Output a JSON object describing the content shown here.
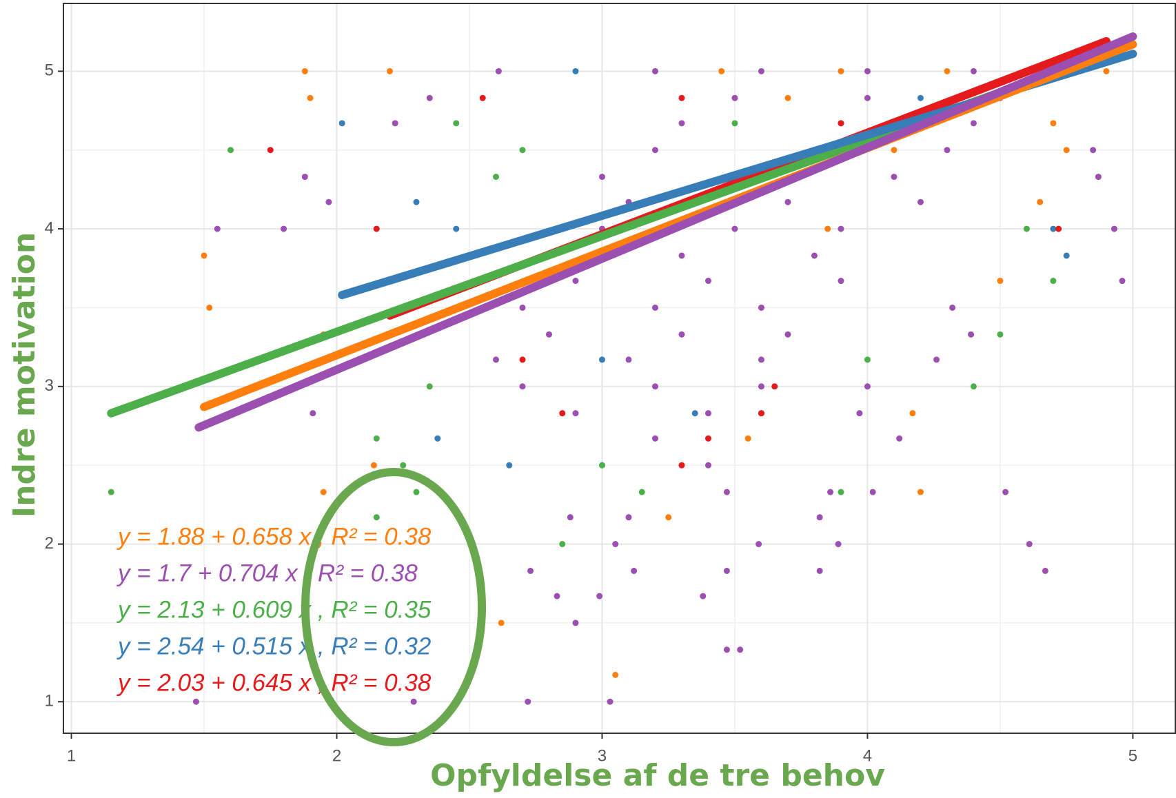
{
  "chart_data": {
    "type": "scatter",
    "xlabel": "Opfyldelse af de tre behov",
    "ylabel": "Indre motivation",
    "xlim": [
      0.97,
      5.16
    ],
    "ylim": [
      0.8,
      5.43
    ],
    "xticks": [
      1,
      2,
      3,
      4,
      5
    ],
    "yticks": [
      1,
      2,
      3,
      4,
      5
    ],
    "xminor": [
      1.5,
      2.5,
      3.5,
      4.5
    ],
    "yminor": [
      1.5,
      2.5,
      3.5,
      4.5
    ],
    "grid": true,
    "series": [
      {
        "color": "#9b4fb0",
        "x": [
          1.47,
          2.29,
          2.72,
          3.03,
          3.47,
          3.52,
          3.38,
          2.9,
          2.83,
          2.99,
          2.73,
          3.12,
          3.47,
          3.82,
          4.67,
          4.61,
          3.59,
          3.89,
          3.05,
          2.88,
          3.1,
          3.82,
          4.52,
          4.02,
          3.86,
          3.47,
          4.26,
          4.39,
          4.32,
          4.96,
          4.93,
          4.87,
          4.85,
          4.12,
          3.97,
          4.0,
          1.55,
          1.8,
          1.88,
          1.97,
          1.91,
          2.22,
          2.35,
          2.61,
          3.2,
          3.6,
          4.0,
          4.4,
          3.5,
          4.0,
          4.5,
          3.3,
          3.9,
          4.4,
          3.2,
          3.8,
          4.3,
          3.0,
          3.6,
          4.1,
          3.1,
          3.7,
          4.2,
          3.0,
          3.5,
          3.9,
          2.8,
          3.3,
          3.8,
          2.9,
          3.4,
          3.9,
          2.7,
          3.2,
          3.6,
          2.8,
          3.3,
          3.7,
          2.6,
          3.1,
          3.6,
          2.7,
          3.2,
          3.6,
          2.9,
          3.4,
          3.2,
          3.0,
          3.4
        ],
        "values": [
          1,
          1,
          1,
          1,
          1.33,
          1.33,
          1.67,
          1.5,
          1.67,
          1.67,
          1.83,
          1.83,
          1.83,
          1.83,
          1.83,
          2,
          2,
          2,
          2,
          2.17,
          2.17,
          2.17,
          2.33,
          2.33,
          2.33,
          2.33,
          3.17,
          3.33,
          3.5,
          3.67,
          4,
          4.33,
          4.5,
          2.67,
          2.83,
          3,
          4,
          4,
          4.33,
          4.17,
          2.83,
          4.67,
          4.83,
          5,
          5,
          5,
          5,
          5,
          4.83,
          4.83,
          4.83,
          4.67,
          4.67,
          4.67,
          4.5,
          4.5,
          4.5,
          4.33,
          4.33,
          4.33,
          4.17,
          4.17,
          4.17,
          4,
          4,
          4,
          3.83,
          3.83,
          3.83,
          3.67,
          3.67,
          3.67,
          3.5,
          3.5,
          3.5,
          3.33,
          3.33,
          3.33,
          3.17,
          3.17,
          3.17,
          3,
          3,
          3,
          2.83,
          2.83,
          2.67,
          2.5,
          2.5
        ]
      },
      {
        "color": "#ff7f0e",
        "x": [
          1.88,
          1.9,
          2.2,
          1.5,
          1.52,
          1.95,
          1.95,
          2.14,
          2.62,
          3.05,
          3.45,
          3.9,
          4.3,
          4.9,
          4.7,
          4.75,
          4.65,
          4.5,
          4.17,
          4.2,
          3.55,
          3.25,
          3.7,
          4.1,
          3.85
        ],
        "values": [
          5,
          4.83,
          5,
          3.83,
          3.5,
          3.33,
          2.33,
          2.5,
          1.5,
          1.17,
          5,
          5,
          5,
          5,
          4.67,
          4.5,
          4.17,
          3.67,
          2.83,
          2.33,
          2.67,
          2.17,
          4.83,
          4.5,
          4
        ]
      },
      {
        "color": "#4daf4a",
        "x": [
          1.15,
          1.6,
          2.15,
          2.15,
          2.25,
          2.3,
          2.45,
          2.6,
          2.7,
          2.85,
          3.15,
          3.5,
          4.0,
          4.5,
          4.6,
          4.7,
          4.4,
          3.0,
          3.6,
          3.9,
          2.35
        ],
        "values": [
          2.33,
          4.5,
          2.17,
          2.67,
          2.5,
          2.33,
          4.67,
          4.33,
          4.5,
          2,
          2.33,
          4.67,
          3.17,
          3.33,
          4,
          3.67,
          3,
          2.5,
          2.83,
          2.33,
          3
        ]
      },
      {
        "color": "#377eb8",
        "x": [
          2.02,
          2.3,
          2.38,
          2.45,
          2.65,
          3.35,
          2.9,
          4.75,
          4.7,
          3.0,
          3.8,
          4.2
        ],
        "values": [
          4.67,
          4.17,
          2.67,
          4,
          2.5,
          2.83,
          5,
          3.83,
          4,
          3.17,
          4.5,
          4.83
        ]
      },
      {
        "color": "#e41a1c",
        "x": [
          2.15,
          1.75,
          2.7,
          2.85,
          3.3,
          3.4,
          3.6,
          4.72,
          3.65,
          3.3,
          3.9,
          2.55
        ],
        "values": [
          4,
          4.5,
          3.17,
          2.83,
          2.5,
          2.67,
          2.83,
          4,
          3,
          4.83,
          4.67,
          4.83
        ]
      }
    ],
    "lines": [
      {
        "color": "#e41a1c",
        "x": [
          2.2,
          4.9
        ],
        "values": [
          3.45,
          5.19
        ]
      },
      {
        "color": "#4daf4a",
        "x": [
          1.15,
          4.95
        ],
        "values": [
          2.83,
          5.14
        ]
      },
      {
        "color": "#377eb8",
        "x": [
          2.02,
          5.0
        ],
        "values": [
          3.58,
          5.11
        ]
      },
      {
        "color": "#ff7f0e",
        "x": [
          1.5,
          5.0
        ],
        "values": [
          2.87,
          5.17
        ]
      },
      {
        "color": "#9b4fb0",
        "x": [
          1.48,
          5.0
        ],
        "values": [
          2.74,
          5.22
        ]
      }
    ],
    "annotations": [
      {
        "text": "y = 1.88 + 0.658 x , R² = 0.38",
        "color": "#ff7f0e"
      },
      {
        "text": "y = 1.7 + 0.704 x , R² = 0.38",
        "color": "#9b4fb0"
      },
      {
        "text": "y = 2.13 + 0.609 x , R² = 0.35",
        "color": "#4daf4a"
      },
      {
        "text": "y = 2.54 + 0.515 x , R² = 0.32",
        "color": "#377eb8"
      },
      {
        "text": "y = 2.03 + 0.645 x , R² = 0.38",
        "color": "#e41a1c"
      }
    ]
  }
}
